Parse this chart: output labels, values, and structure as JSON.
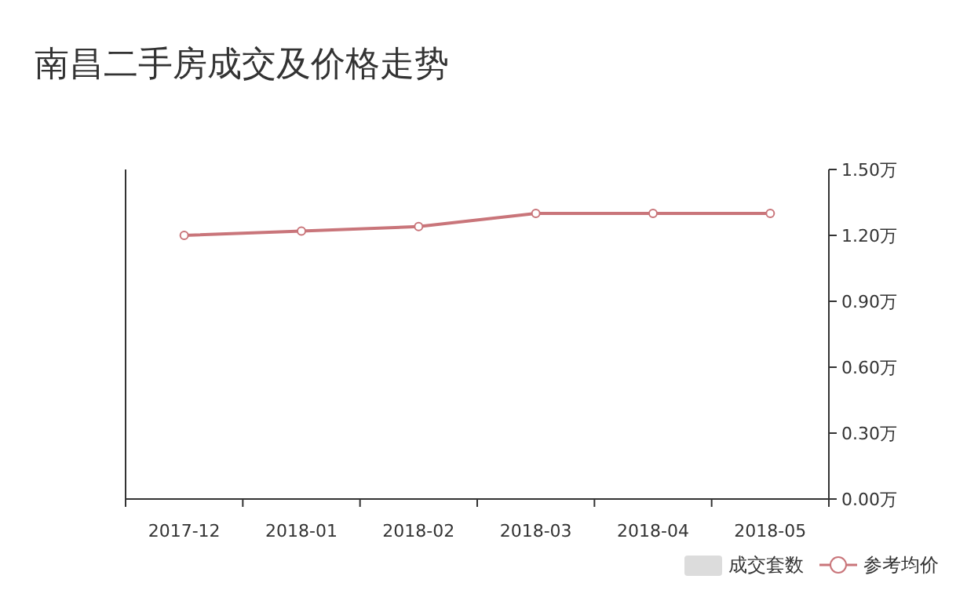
{
  "chart_data": {
    "type": "line",
    "title": "南昌二手房成交及价格走势",
    "categories": [
      "2017-12",
      "2018-01",
      "2018-02",
      "2018-03",
      "2018-04",
      "2018-05"
    ],
    "series": [
      {
        "name": "成交套数",
        "type": "bar",
        "color": "#dcdcdc",
        "values": [
          null,
          null,
          null,
          null,
          null,
          null
        ]
      },
      {
        "name": "参考均价",
        "type": "line",
        "color": "#c9757a",
        "axis": "y2",
        "marker": "circle",
        "values": [
          1.2,
          1.22,
          1.24,
          1.3,
          1.3,
          1.3
        ]
      }
    ],
    "y2lim": [
      0,
      1.5
    ],
    "y2ticks": [
      {
        "value": 0,
        "label": "0.00万"
      },
      {
        "value": 0.3,
        "label": "0.30万"
      },
      {
        "value": 0.6,
        "label": "0.60万"
      },
      {
        "value": 0.9,
        "label": "0.90万"
      },
      {
        "value": 1.2,
        "label": "1.20万"
      },
      {
        "value": 1.5,
        "label": "1.50万"
      }
    ],
    "grid": false,
    "legend": "bottom right"
  }
}
